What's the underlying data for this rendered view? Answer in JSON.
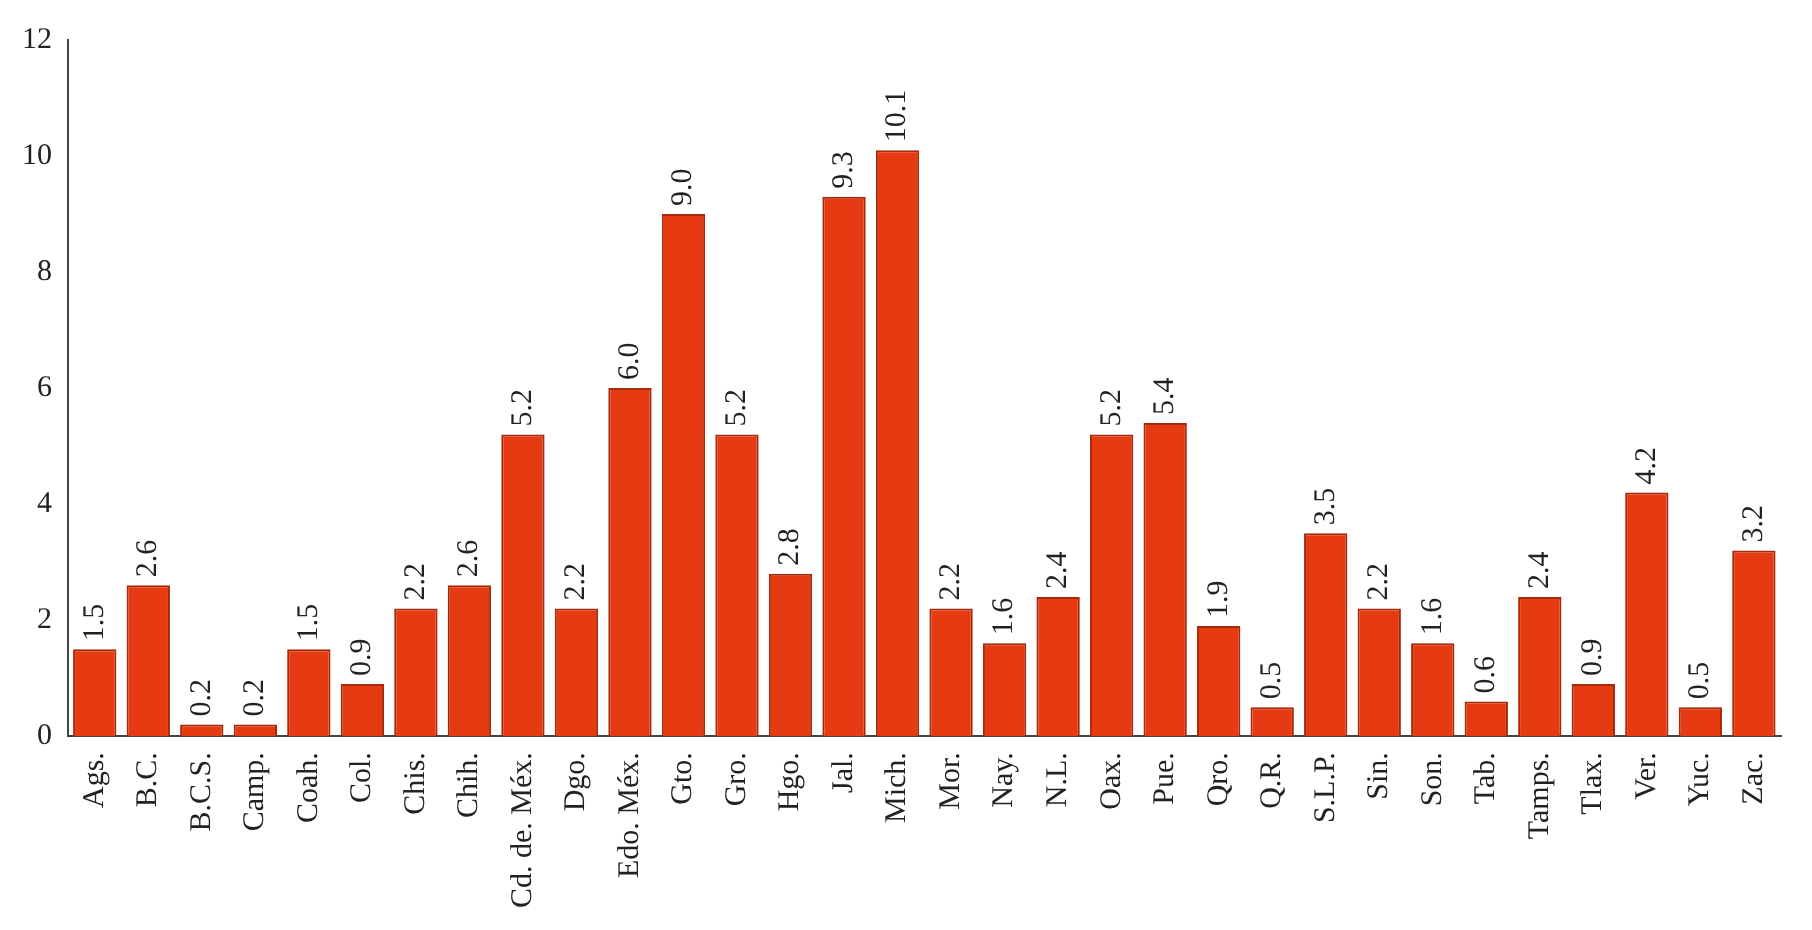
{
  "chart_data": {
    "type": "bar",
    "categories": [
      "Ags.",
      "B.C.",
      "B.C.S.",
      "Camp.",
      "Coah.",
      "Col.",
      "Chis.",
      "Chih.",
      "Cd. de. Méx.",
      "Dgo.",
      "Edo. Méx.",
      "Gto.",
      "Gro.",
      "Hgo.",
      "Jal.",
      "Mich.",
      "Mor.",
      "Nay.",
      "N.L.",
      "Oax.",
      "Pue.",
      "Qro.",
      "Q.R.",
      "S.L.P.",
      "Sin.",
      "Son.",
      "Tab.",
      "Tamps.",
      "Tlax.",
      "Ver.",
      "Yuc.",
      "Zac."
    ],
    "values": [
      1.5,
      2.6,
      0.2,
      0.2,
      1.5,
      0.9,
      2.2,
      2.6,
      5.2,
      2.2,
      6.0,
      9.0,
      5.2,
      2.8,
      9.3,
      10.1,
      2.2,
      1.6,
      2.4,
      5.2,
      5.4,
      1.9,
      0.5,
      3.5,
      2.2,
      1.6,
      0.6,
      2.4,
      0.9,
      4.2,
      0.5,
      3.2
    ],
    "value_labels": [
      "1.5",
      "2.6",
      "0.2",
      "0.2",
      "1.5",
      "0.9",
      "2.2",
      "2.6",
      "5.2",
      "2.2",
      "6.0",
      "9.0",
      "5.2",
      "2.8",
      "9.3",
      "10.1",
      "2.2",
      "1.6",
      "2.4",
      "5.2",
      "5.4",
      "1.9",
      "0.5",
      "3.5",
      "2.2",
      "1.6",
      "0.6",
      "2.4",
      "0.9",
      "4.2",
      "0.5",
      "3.2"
    ],
    "color": "#e63a12",
    "ylim": [
      0,
      12
    ],
    "yticks": [
      0,
      2,
      4,
      6,
      8,
      10,
      12
    ],
    "grid": false,
    "legend": false
  }
}
